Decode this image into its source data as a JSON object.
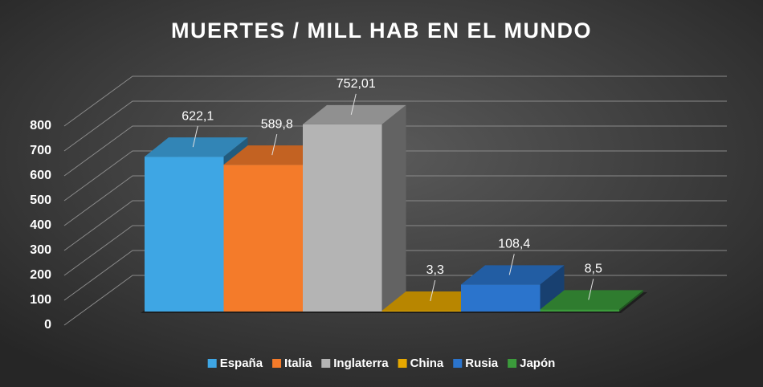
{
  "chart_data": {
    "type": "bar3d",
    "title": "MUERTES / MILL HAB EN EL MUNDO",
    "series": [
      {
        "name": "España",
        "color": "#3ea6e4",
        "values": [
          622.1
        ],
        "value_labels": [
          "622,1"
        ]
      },
      {
        "name": "Italia",
        "color": "#f47b2a",
        "values": [
          589.8
        ],
        "value_labels": [
          "589,8"
        ]
      },
      {
        "name": "Inglaterra",
        "color": "#b4b4b4",
        "values": [
          752.01
        ],
        "value_labels": [
          "752,01"
        ]
      },
      {
        "name": "China",
        "color": "#e6a800",
        "values": [
          3.3
        ],
        "value_labels": [
          "3,3"
        ]
      },
      {
        "name": "Rusia",
        "color": "#2b74cc",
        "values": [
          108.4
        ],
        "value_labels": [
          "108,4"
        ]
      },
      {
        "name": "Japón",
        "color": "#3b9b3b",
        "values": [
          8.5
        ],
        "value_labels": [
          "8,5"
        ]
      }
    ],
    "ylim": [
      0,
      800
    ],
    "yticks": [
      0,
      100,
      200,
      300,
      400,
      500,
      600,
      700,
      800
    ],
    "grid": true,
    "legend": "bottom"
  }
}
